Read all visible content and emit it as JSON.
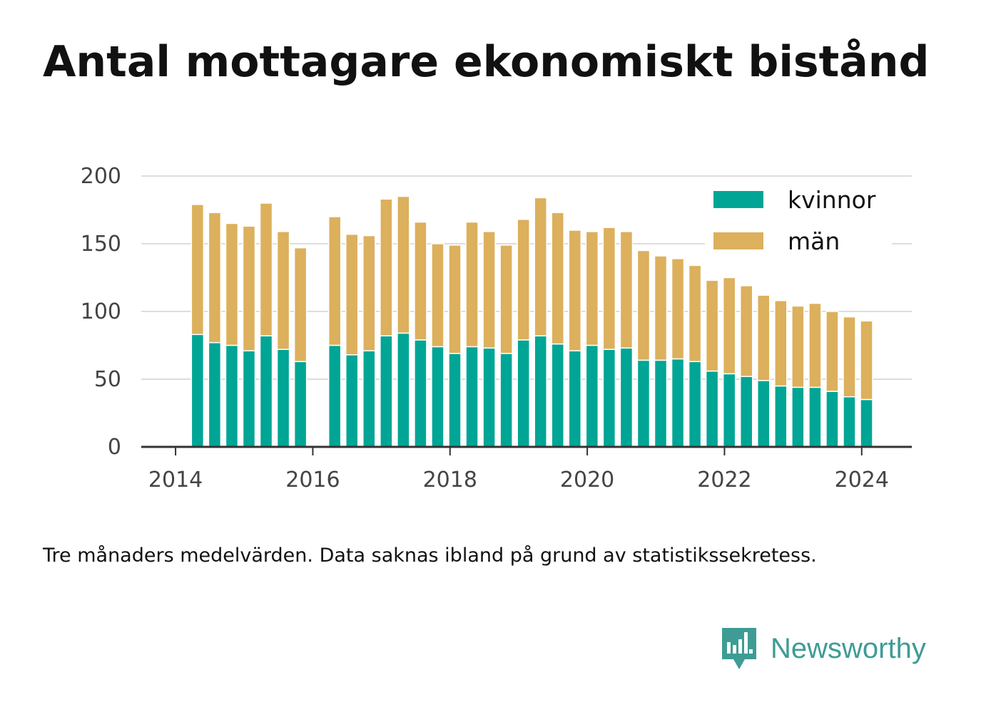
{
  "title": "Antal mottagare ekonomiskt bistånd",
  "note": "Tre månaders medelvärden. Data saknas ibland på grund av statistikssekretess.",
  "brand": {
    "name": "Newsworthy",
    "color": "#3e9c95"
  },
  "colors": {
    "kvinnor": "#00a595",
    "man": "#dcb05c",
    "grid": "#dddddd",
    "axis": "#333333",
    "tick_text": "#444444"
  },
  "chart_data": {
    "type": "bar",
    "stacked": true,
    "x_ticks": [
      "2014",
      "2016",
      "2018",
      "2020",
      "2022",
      "2024"
    ],
    "y_ticks": [
      "0",
      "50",
      "100",
      "150",
      "200"
    ],
    "ylim": [
      0,
      200
    ],
    "grid": true,
    "legend": "top-right",
    "series": [
      {
        "name": "kvinnor",
        "color": "#00a595",
        "values": [
          83,
          77,
          75,
          71,
          82,
          72,
          63,
          null,
          75,
          68,
          71,
          82,
          84,
          79,
          74,
          69,
          74,
          73,
          69,
          79,
          82,
          76,
          71,
          75,
          72,
          73,
          64,
          64,
          65,
          63,
          56,
          54,
          52,
          49,
          45,
          44,
          44,
          41,
          37,
          35
        ]
      },
      {
        "name": "män",
        "color": "#dcb05c",
        "values": [
          96,
          96,
          90,
          92,
          98,
          87,
          84,
          null,
          95,
          89,
          85,
          101,
          101,
          87,
          76,
          80,
          92,
          86,
          80,
          89,
          102,
          97,
          89,
          84,
          90,
          86,
          81,
          77,
          74,
          71,
          67,
          71,
          67,
          63,
          63,
          60,
          62,
          59,
          59,
          58
        ]
      }
    ],
    "x_start": 2014.32,
    "x_step": 0.25
  }
}
